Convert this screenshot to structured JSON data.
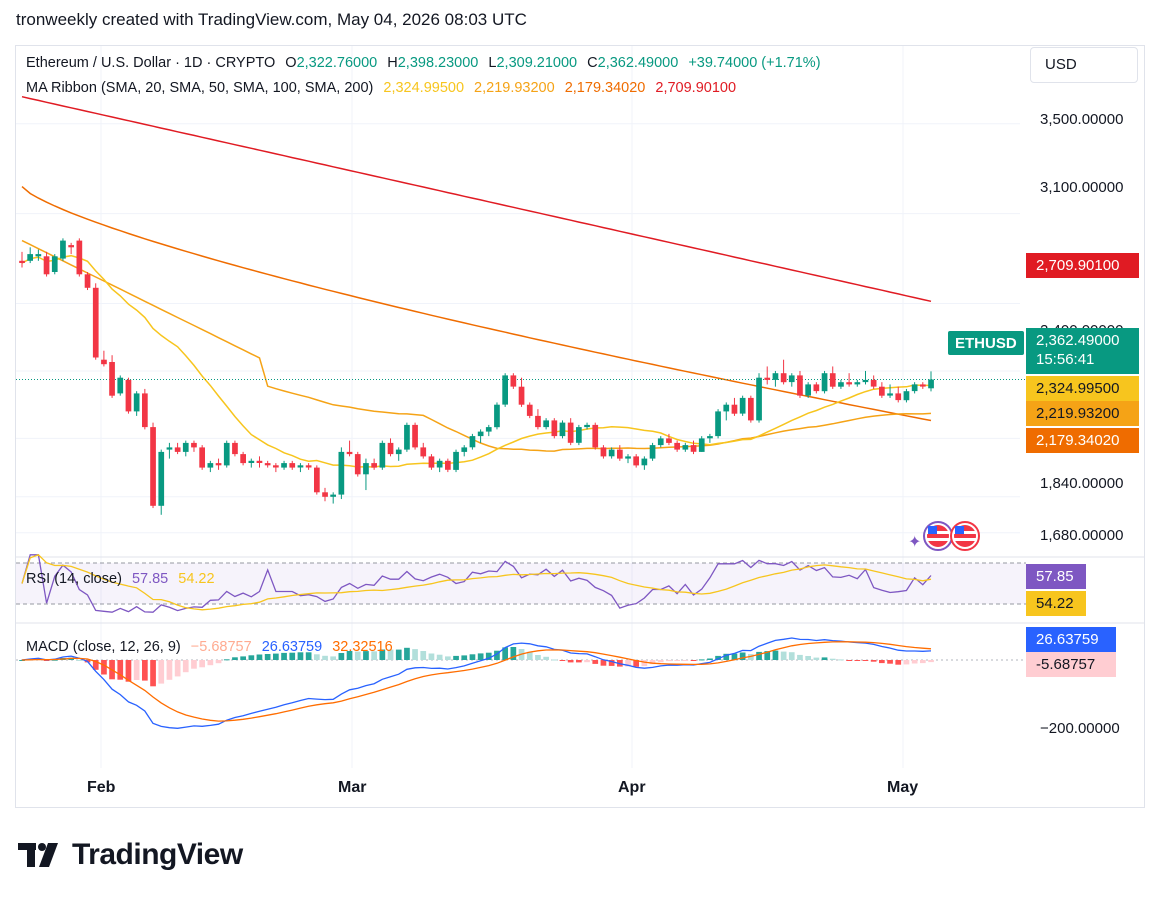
{
  "header_line": "tronweekly created with TradingView.com, May 04, 2026 08:03 UTC",
  "symbol": {
    "name": "Ethereum / U.S. Dollar · 1D · CRYPTO",
    "o_label": "O",
    "o": "2,322.76000",
    "h_label": "H",
    "h": "2,398.23000",
    "l_label": "L",
    "l": "2,309.21000",
    "c_label": "C",
    "c": "2,362.49000",
    "change": "+39.74000 (+1.71%)"
  },
  "ma_ribbon": {
    "label": "MA Ribbon (SMA, 20, SMA, 50, SMA, 100, SMA, 200)",
    "v20": "2,324.99500",
    "v50": "2,219.93200",
    "v100": "2,179.34020",
    "v200": "2,709.90100"
  },
  "currency_button": "USD",
  "price_axis": [
    "3,500.00000",
    "3,100.00000",
    "1,840.00000",
    "1,680.00000"
  ],
  "price_axis_hidden": "2,400.00000",
  "badges": {
    "sma200": "2,709.90100",
    "ticker": "ETHUSD",
    "last": "2,362.49000",
    "countdown": "15:56:41",
    "sma20": "2,324.99500",
    "sma50": "2,219.93200",
    "sma100": "2,179.34020",
    "rsi": "57.85",
    "rsi_ma": "54.22",
    "macd_signal": "26.63759",
    "macd_hist": "-5.68757"
  },
  "rsi": {
    "label": "RSI (14, close)",
    "value": "57.85",
    "ma": "54.22"
  },
  "macd": {
    "label": "MACD (close, 12, 26, 9)",
    "hist": "−5.68757",
    "macd": "26.63759",
    "signal": "32.32516",
    "axis": "−200.00000"
  },
  "months": [
    "Feb",
    "Mar",
    "Apr",
    "May"
  ],
  "logo_text": "TradingView",
  "colors": {
    "up": "#089981",
    "down": "#f23645",
    "sma20": "#f7c51e",
    "sma50": "#f5a316",
    "sma100": "#ef6c00",
    "sma200": "#e01b23",
    "rsi": "#7e57c2",
    "macd": "#2962ff",
    "signal": "#ff6d00"
  },
  "chart_data": {
    "type": "candlestick",
    "title": "Ethereum / U.S. Dollar · 1D · CRYPTO",
    "x_ticks": [
      "Feb",
      "Mar",
      "Apr",
      "May"
    ],
    "y_range": [
      1590,
      3650
    ],
    "candles": [
      [
        2890,
        2930,
        2860,
        2880
      ],
      [
        2890,
        2950,
        2880,
        2920
      ],
      [
        2910,
        2940,
        2890,
        2920
      ],
      [
        2910,
        2930,
        2820,
        2830
      ],
      [
        2840,
        2920,
        2830,
        2910
      ],
      [
        2900,
        2990,
        2890,
        2980
      ],
      [
        2960,
        2970,
        2920,
        2950
      ],
      [
        2980,
        2990,
        2820,
        2830
      ],
      [
        2830,
        2840,
        2760,
        2770
      ],
      [
        2770,
        2790,
        2450,
        2460
      ],
      [
        2450,
        2490,
        2420,
        2430
      ],
      [
        2440,
        2470,
        2280,
        2290
      ],
      [
        2300,
        2380,
        2290,
        2370
      ],
      [
        2360,
        2370,
        2210,
        2220
      ],
      [
        2220,
        2310,
        2200,
        2300
      ],
      [
        2300,
        2320,
        2140,
        2150
      ],
      [
        2150,
        2170,
        1790,
        1800
      ],
      [
        1800,
        2050,
        1760,
        2040
      ],
      [
        2050,
        2080,
        2010,
        2060
      ],
      [
        2060,
        2080,
        2030,
        2040
      ],
      [
        2040,
        2090,
        2020,
        2080
      ],
      [
        2080,
        2090,
        2040,
        2060
      ],
      [
        2060,
        2070,
        1960,
        1970
      ],
      [
        1970,
        2000,
        1950,
        1990
      ],
      [
        1990,
        2010,
        1960,
        1980
      ],
      [
        1980,
        2090,
        1970,
        2080
      ],
      [
        2080,
        2090,
        2020,
        2030
      ],
      [
        2030,
        2040,
        1980,
        1990
      ],
      [
        1990,
        2010,
        1970,
        2000
      ],
      [
        2000,
        2020,
        1970,
        1990
      ],
      [
        1990,
        2000,
        1970,
        1980
      ],
      [
        1980,
        1990,
        1950,
        1970
      ],
      [
        1970,
        2000,
        1960,
        1990
      ],
      [
        1990,
        2000,
        1960,
        1970
      ],
      [
        1970,
        1990,
        1950,
        1980
      ],
      [
        1980,
        1990,
        1960,
        1970
      ],
      [
        1970,
        1980,
        1850,
        1860
      ],
      [
        1860,
        1880,
        1820,
        1840
      ],
      [
        1840,
        1860,
        1810,
        1850
      ],
      [
        1850,
        2060,
        1830,
        2040
      ],
      [
        2040,
        2090,
        2020,
        2030
      ],
      [
        2030,
        2040,
        1930,
        1940
      ],
      [
        1940,
        2010,
        1870,
        1990
      ],
      [
        1990,
        2010,
        1960,
        1970
      ],
      [
        1970,
        2090,
        1960,
        2080
      ],
      [
        2080,
        2100,
        2020,
        2030
      ],
      [
        2030,
        2060,
        2000,
        2050
      ],
      [
        2050,
        2170,
        2040,
        2160
      ],
      [
        2160,
        2170,
        2050,
        2060
      ],
      [
        2060,
        2080,
        2010,
        2020
      ],
      [
        2020,
        2030,
        1960,
        1970
      ],
      [
        1970,
        2010,
        1950,
        2000
      ],
      [
        2000,
        2010,
        1950,
        1960
      ],
      [
        1960,
        2050,
        1950,
        2040
      ],
      [
        2040,
        2070,
        2020,
        2060
      ],
      [
        2060,
        2120,
        2050,
        2110
      ],
      [
        2110,
        2140,
        2080,
        2130
      ],
      [
        2130,
        2160,
        2110,
        2150
      ],
      [
        2150,
        2260,
        2140,
        2250
      ],
      [
        2250,
        2390,
        2240,
        2380
      ],
      [
        2380,
        2390,
        2320,
        2330
      ],
      [
        2330,
        2370,
        2240,
        2250
      ],
      [
        2250,
        2260,
        2190,
        2200
      ],
      [
        2200,
        2230,
        2140,
        2150
      ],
      [
        2150,
        2190,
        2140,
        2180
      ],
      [
        2180,
        2190,
        2100,
        2110
      ],
      [
        2110,
        2180,
        2100,
        2170
      ],
      [
        2170,
        2190,
        2070,
        2080
      ],
      [
        2080,
        2160,
        2070,
        2150
      ],
      [
        2150,
        2170,
        2140,
        2160
      ],
      [
        2160,
        2170,
        2050,
        2060
      ],
      [
        2060,
        2070,
        2010,
        2020
      ],
      [
        2020,
        2060,
        2010,
        2050
      ],
      [
        2050,
        2070,
        2000,
        2010
      ],
      [
        2010,
        2030,
        1990,
        2020
      ],
      [
        2020,
        2030,
        1970,
        1980
      ],
      [
        1980,
        2020,
        1960,
        2010
      ],
      [
        2010,
        2080,
        2000,
        2070
      ],
      [
        2070,
        2110,
        2060,
        2100
      ],
      [
        2100,
        2120,
        2070,
        2080
      ],
      [
        2080,
        2090,
        2040,
        2050
      ],
      [
        2050,
        2080,
        2040,
        2070
      ],
      [
        2070,
        2090,
        2030,
        2040
      ],
      [
        2040,
        2110,
        2040,
        2100
      ],
      [
        2100,
        2120,
        2080,
        2110
      ],
      [
        2110,
        2230,
        2100,
        2220
      ],
      [
        2220,
        2260,
        2180,
        2250
      ],
      [
        2250,
        2280,
        2200,
        2210
      ],
      [
        2210,
        2290,
        2200,
        2280
      ],
      [
        2280,
        2290,
        2170,
        2180
      ],
      [
        2180,
        2390,
        2170,
        2370
      ],
      [
        2370,
        2420,
        2340,
        2360
      ],
      [
        2360,
        2400,
        2330,
        2390
      ],
      [
        2390,
        2450,
        2340,
        2350
      ],
      [
        2350,
        2390,
        2330,
        2380
      ],
      [
        2380,
        2400,
        2280,
        2290
      ],
      [
        2290,
        2350,
        2280,
        2340
      ],
      [
        2340,
        2350,
        2300,
        2310
      ],
      [
        2310,
        2400,
        2300,
        2390
      ],
      [
        2390,
        2420,
        2320,
        2330
      ],
      [
        2330,
        2360,
        2320,
        2350
      ],
      [
        2350,
        2390,
        2330,
        2340
      ],
      [
        2340,
        2360,
        2330,
        2350
      ],
      [
        2350,
        2400,
        2340,
        2360
      ],
      [
        2360,
        2380,
        2320,
        2330
      ],
      [
        2330,
        2350,
        2280,
        2290
      ],
      [
        2290,
        2340,
        2280,
        2300
      ],
      [
        2300,
        2330,
        2260,
        2270
      ],
      [
        2270,
        2320,
        2260,
        2310
      ],
      [
        2310,
        2350,
        2300,
        2340
      ],
      [
        2340,
        2350,
        2320,
        2330
      ],
      [
        2323,
        2398,
        2309,
        2362
      ]
    ],
    "sma20_value": 2324.995,
    "sma50_value": 2219.932,
    "sma100_value": 2179.3402,
    "sma200_value": 2709.901,
    "rsi_value": 57.85,
    "rsi_ma_value": 54.22,
    "macd_value": 26.63759,
    "macd_signal_value": 32.32516,
    "macd_hist_value": -5.68757
  }
}
